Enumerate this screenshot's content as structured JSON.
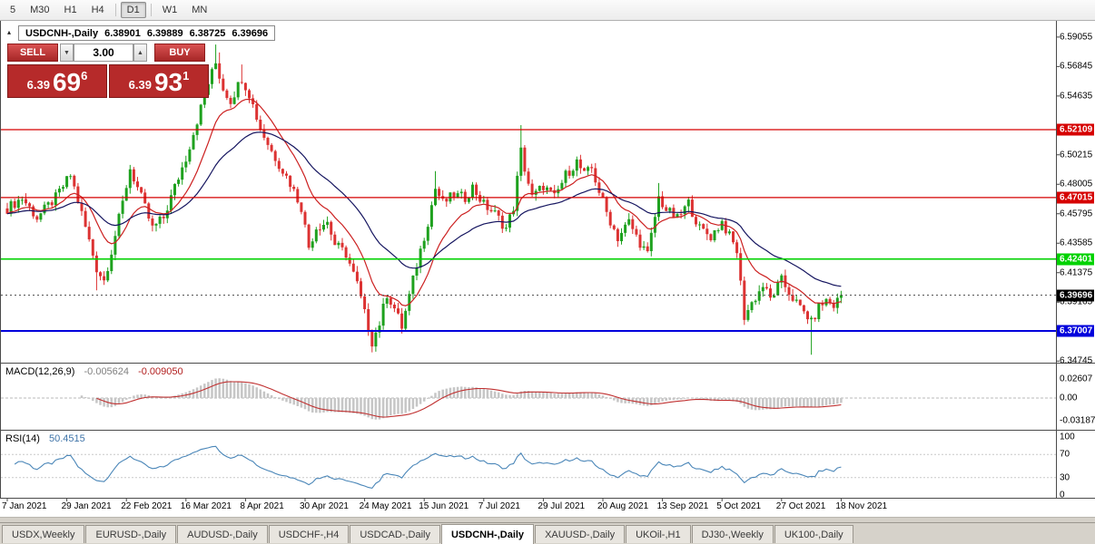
{
  "toolbar": {
    "items": [
      "5",
      "M30",
      "H1",
      "H4",
      "D1",
      "W1",
      "MN"
    ],
    "active_index": 4
  },
  "quote_panel": {
    "header": {
      "symbol_period": "USDCNH-,Daily",
      "open": "6.38901",
      "high": "6.39889",
      "low": "6.38725",
      "close": "6.39696"
    },
    "icons": {
      "collapse": "▴",
      "spin_down": "▼",
      "spin_up": "▲"
    },
    "sell_button": "SELL",
    "buy_button": "BUY",
    "volume": "3.00",
    "sell_price": {
      "prefix": "6.39",
      "big": "69",
      "sup": "6"
    },
    "buy_price": {
      "prefix": "6.39",
      "big": "93",
      "sup": "1"
    }
  },
  "price_chart": {
    "y_axis_labels": [
      "6.59055",
      "6.56845",
      "6.54635",
      "6.50215",
      "6.48005",
      "6.45795",
      "6.43585",
      "6.41375",
      "6.39165",
      "6.34745"
    ],
    "levels": [
      {
        "label": "6.52109",
        "price": 6.52109,
        "color": "#d60000",
        "width": 1.3
      },
      {
        "label": "6.47015",
        "price": 6.47015,
        "color": "#d60000",
        "width": 1.3
      },
      {
        "label": "6.42401",
        "price": 6.42401,
        "color": "#00d200",
        "width": 1.6
      },
      {
        "label": "6.37007",
        "price": 6.37007,
        "color": "#0000dc",
        "width": 2
      }
    ],
    "current_price": {
      "label": "6.39696",
      "price": 6.39696,
      "color": "#000000"
    },
    "colors": {
      "bull": "#1ea11e",
      "bear": "#dc3232",
      "ma_fast": "#cc2020",
      "ma_slow": "#14145f"
    }
  },
  "macd_panel": {
    "title": "MACD(12,26,9)",
    "value_main": "-0.005624",
    "value_signal": "-0.009050",
    "axis_labels": [
      "0.02607",
      "0.00",
      "-0.03187"
    ],
    "histogram_color": "#c6c6c6",
    "signal_color": "#c03030"
  },
  "rsi_panel": {
    "title": "RSI(14)",
    "value": "50.4515",
    "axis_labels": [
      "100",
      "70",
      "30",
      "0"
    ],
    "levels": [
      70,
      30
    ],
    "line_color": "#4a86b8"
  },
  "time_axis": {
    "labels": [
      "7 Jan 2021",
      "29 Jan 2021",
      "22 Feb 2021",
      "16 Mar 2021",
      "8 Apr 2021",
      "30 Apr 2021",
      "24 May 2021",
      "15 Jun 2021",
      "7 Jul 2021",
      "29 Jul 2021",
      "20 Aug 2021",
      "13 Sep 2021",
      "5 Oct 2021",
      "27 Oct 2021",
      "18 Nov 2021"
    ]
  },
  "tabs": {
    "items": [
      "USDX,Weekly",
      "EURUSD-,Daily",
      "AUDUSD-,Daily",
      "USDCHF-,H4",
      "USDCAD-,Daily",
      "USDCNH-,Daily",
      "XAUUSD-,Daily",
      "UKOil-,H1",
      "DJ30-,Weekly",
      "UK100-,Daily"
    ],
    "active_index": 5
  },
  "chart_data": {
    "type": "candlestick",
    "symbol": "USDCNH-",
    "timeframe": "Daily",
    "count": 225,
    "x_label_step": 16,
    "jitter": 0.004,
    "wick": 0.0045,
    "y_range": [
      6.345,
      6.598
    ],
    "close_anchors": [
      [
        0,
        6.462
      ],
      [
        4,
        6.47
      ],
      [
        8,
        6.455
      ],
      [
        13,
        6.47
      ],
      [
        17,
        6.487
      ],
      [
        20,
        6.458
      ],
      [
        24,
        6.417
      ],
      [
        26,
        6.408
      ],
      [
        28,
        6.43
      ],
      [
        31,
        6.466
      ],
      [
        33,
        6.492
      ],
      [
        36,
        6.47
      ],
      [
        39,
        6.447
      ],
      [
        42,
        6.455
      ],
      [
        45,
        6.478
      ],
      [
        48,
        6.5
      ],
      [
        51,
        6.528
      ],
      [
        54,
        6.556
      ],
      [
        56,
        6.571
      ],
      [
        58,
        6.552
      ],
      [
        60,
        6.543
      ],
      [
        63,
        6.56
      ],
      [
        65,
        6.548
      ],
      [
        68,
        6.522
      ],
      [
        71,
        6.505
      ],
      [
        76,
        6.481
      ],
      [
        79,
        6.463
      ],
      [
        81,
        6.433
      ],
      [
        83,
        6.448
      ],
      [
        86,
        6.452
      ],
      [
        88,
        6.435
      ],
      [
        91,
        6.428
      ],
      [
        94,
        6.405
      ],
      [
        96,
        6.383
      ],
      [
        98,
        6.362
      ],
      [
        100,
        6.376
      ],
      [
        102,
        6.398
      ],
      [
        104,
        6.387
      ],
      [
        106,
        6.373
      ],
      [
        108,
        6.396
      ],
      [
        110,
        6.42
      ],
      [
        113,
        6.452
      ],
      [
        115,
        6.477
      ],
      [
        117,
        6.466
      ],
      [
        120,
        6.472
      ],
      [
        123,
        6.47
      ],
      [
        125,
        6.478
      ],
      [
        128,
        6.465
      ],
      [
        131,
        6.458
      ],
      [
        134,
        6.447
      ],
      [
        136,
        6.463
      ],
      [
        138,
        6.505
      ],
      [
        139,
        6.492
      ],
      [
        141,
        6.47
      ],
      [
        144,
        6.479
      ],
      [
        147,
        6.47
      ],
      [
        150,
        6.487
      ],
      [
        153,
        6.497
      ],
      [
        155,
        6.487
      ],
      [
        157,
        6.492
      ],
      [
        159,
        6.475
      ],
      [
        161,
        6.459
      ],
      [
        164,
        6.44
      ],
      [
        167,
        6.452
      ],
      [
        169,
        6.441
      ],
      [
        172,
        6.427
      ],
      [
        175,
        6.47
      ],
      [
        177,
        6.461
      ],
      [
        180,
        6.454
      ],
      [
        183,
        6.466
      ],
      [
        186,
        6.447
      ],
      [
        189,
        6.441
      ],
      [
        192,
        6.452
      ],
      [
        194,
        6.441
      ],
      [
        196,
        6.43
      ],
      [
        198,
        6.381
      ],
      [
        200,
        6.391
      ],
      [
        203,
        6.404
      ],
      [
        205,
        6.394
      ],
      [
        208,
        6.408
      ],
      [
        210,
        6.399
      ],
      [
        213,
        6.387
      ],
      [
        215,
        6.381
      ],
      [
        216,
        6.376
      ],
      [
        218,
        6.388
      ],
      [
        220,
        6.393
      ],
      [
        222,
        6.389
      ],
      [
        224,
        6.397
      ]
    ],
    "wick_spikes": [
      {
        "i": 24,
        "low": 6.4005
      },
      {
        "i": 56,
        "high": 6.585
      },
      {
        "i": 57,
        "high": 6.579
      },
      {
        "i": 63,
        "high": 6.57
      },
      {
        "i": 98,
        "low": 6.356
      },
      {
        "i": 99,
        "low": 6.3585
      },
      {
        "i": 115,
        "high": 6.49
      },
      {
        "i": 138,
        "high": 6.5245
      },
      {
        "i": 175,
        "high": 6.481
      },
      {
        "i": 198,
        "low": 6.376
      },
      {
        "i": 216,
        "low": 6.3522
      }
    ],
    "indicators": {
      "ma_fast_period": 13,
      "ma_slow_period": 34,
      "macd": [
        12,
        26,
        9
      ],
      "rsi": 14
    }
  }
}
